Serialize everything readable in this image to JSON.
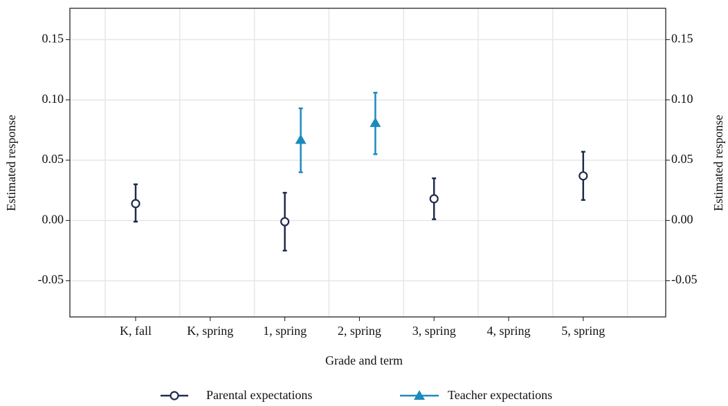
{
  "chart_data": {
    "type": "errorbar",
    "x_label": "Grade and term",
    "y_label": "Estimated response",
    "y2_label": "Estimated response",
    "categories": [
      "K, fall",
      "K, spring",
      "1, spring",
      "2, spring",
      "3, spring",
      "4, spring",
      "5, spring"
    ],
    "series": [
      {
        "name": "Parental expectations",
        "color": "#1f2b4e",
        "marker": "circle",
        "values": [
          0.014,
          null,
          -0.001,
          null,
          0.018,
          null,
          0.037
        ],
        "lower": [
          -0.001,
          null,
          -0.025,
          null,
          0.001,
          null,
          0.017
        ],
        "upper": [
          0.03,
          null,
          0.023,
          null,
          0.035,
          null,
          0.057
        ]
      },
      {
        "name": "Teacher expectations",
        "color": "#1a8bbd",
        "marker": "triangle",
        "values": [
          null,
          null,
          0.067,
          0.081,
          null,
          null,
          null
        ],
        "lower": [
          null,
          null,
          0.04,
          0.055,
          null,
          null,
          null
        ],
        "upper": [
          null,
          null,
          0.093,
          0.106,
          null,
          null,
          null
        ]
      }
    ],
    "ylim": [
      -0.08,
      0.176
    ],
    "yticks": [
      {
        "value": -0.05,
        "label": "-0.05"
      },
      {
        "value": 0,
        "label": "0.00"
      },
      {
        "value": 0.05,
        "label": "0.05"
      },
      {
        "value": 0.1,
        "label": "0.10"
      },
      {
        "value": 0.15,
        "label": "0.15"
      }
    ],
    "y2lim": [
      -0.08,
      0.176
    ],
    "y2ticks": [
      {
        "value": -0.05,
        "label": "-0.05"
      },
      {
        "value": 0,
        "label": "0.00"
      },
      {
        "value": 0.05,
        "label": "0.05"
      },
      {
        "value": 0.1,
        "label": "0.10"
      },
      {
        "value": 0.15,
        "label": "0.15"
      }
    ],
    "grid": true,
    "legend": "bottom"
  }
}
